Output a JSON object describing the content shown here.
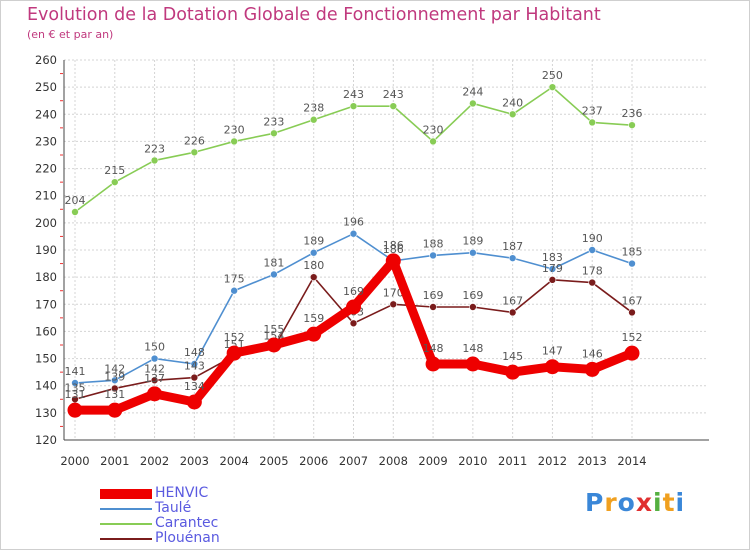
{
  "chart_data": {
    "type": "line",
    "title": "Evolution de la Dotation Globale de Fonctionnement par Habitant",
    "subtitle": "(en € et par an)",
    "xlabel": "",
    "ylabel": "",
    "x": [
      "2000",
      "2001",
      "2002",
      "2003",
      "2004",
      "2005",
      "2006",
      "2007",
      "2008",
      "2009",
      "2010",
      "2011",
      "2012",
      "2013",
      "2014"
    ],
    "ylim": [
      120,
      260
    ],
    "yticks": [
      120,
      130,
      140,
      150,
      160,
      170,
      180,
      190,
      200,
      210,
      220,
      230,
      240,
      250,
      260
    ],
    "grid": true,
    "legend_position": "bottom-left",
    "series": [
      {
        "name": "Carantec",
        "color": "#88cc55",
        "values": [
          204,
          215,
          223,
          226,
          230,
          233,
          238,
          243,
          243,
          230,
          244,
          240,
          250,
          237,
          236
        ]
      },
      {
        "name": "Taulé",
        "color": "#4f8fd0",
        "values": [
          141,
          142,
          150,
          148,
          175,
          181,
          189,
          196,
          186,
          188,
          189,
          187,
          183,
          190,
          185
        ]
      },
      {
        "name": "Plouénan",
        "color": "#7a1c1c",
        "values": [
          135,
          139,
          142,
          143,
          151,
          154,
          180,
          163,
          170,
          169,
          169,
          167,
          179,
          178,
          167
        ]
      },
      {
        "name": "HENVIC",
        "color": "#ee0000",
        "values": [
          131,
          131,
          137,
          134,
          152,
          155,
          159,
          169,
          186,
          148,
          148,
          145,
          147,
          146,
          152
        ]
      }
    ]
  },
  "legend": [
    {
      "name": "HENVIC",
      "color": "#ee0000"
    },
    {
      "name": "Taulé",
      "color": "#4f8fd0"
    },
    {
      "name": "Carantec",
      "color": "#88cc55"
    },
    {
      "name": "Plouénan",
      "color": "#7a1c1c"
    }
  ],
  "logo": {
    "letters": [
      "P",
      "r",
      "o",
      "x",
      "i",
      "t",
      "i"
    ],
    "colors": [
      "#3a87d8",
      "#f0a020",
      "#3a87d8",
      "#e03030",
      "#55b040",
      "#f0a020",
      "#3a87d8"
    ]
  }
}
